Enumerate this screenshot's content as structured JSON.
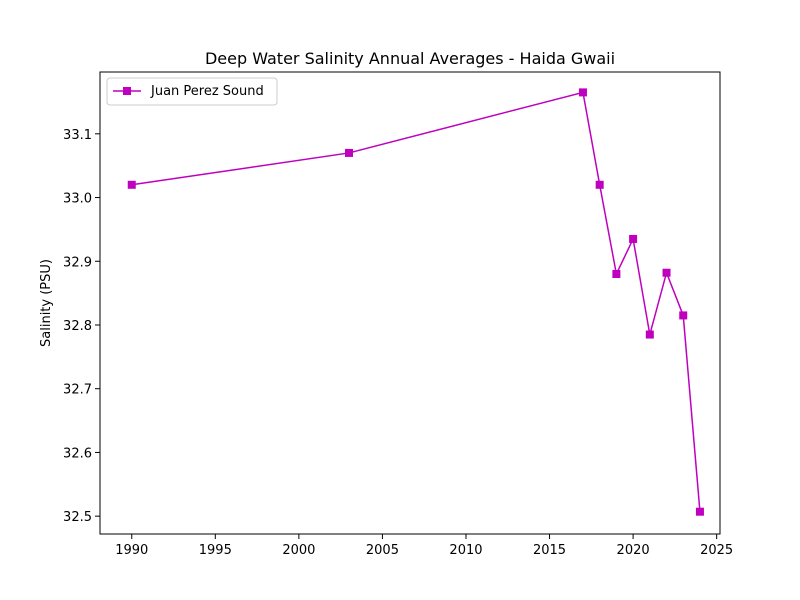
{
  "chart_data": {
    "type": "line",
    "title": "Deep Water Salinity Annual Averages - Haida Gwaii",
    "xlabel": "",
    "ylabel": "Salinity (PSU)",
    "xlim": [
      1988.1,
      2025.2
    ],
    "ylim": [
      32.472,
      33.197
    ],
    "xticks": [
      1990,
      1995,
      2000,
      2005,
      2010,
      2015,
      2020,
      2025
    ],
    "yticks": [
      32.5,
      32.6,
      32.7,
      32.8,
      32.9,
      33.0,
      33.1
    ],
    "grid": false,
    "legend_position": "upper-left",
    "series": [
      {
        "name": "Juan Perez Sound",
        "color": "#bf00bf",
        "marker": "square",
        "x": [
          1990,
          2003,
          2017,
          2018,
          2019,
          2020,
          2021,
          2022,
          2023,
          2024
        ],
        "y": [
          33.02,
          33.07,
          33.165,
          33.02,
          32.88,
          32.935,
          32.785,
          32.882,
          32.815,
          32.507
        ]
      }
    ]
  }
}
